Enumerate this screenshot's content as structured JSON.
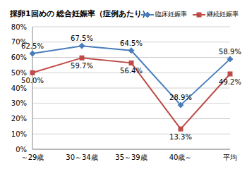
{
  "chart_data": {
    "type": "line",
    "title": "採卵1回めの 総合妊娠率（症例あたり）",
    "categories": [
      "～29歳",
      "30～34歳",
      "35～39歳",
      "40歳～",
      "平均"
    ],
    "series": [
      {
        "name": "臨床妊娠率",
        "color": "#4a7ebb",
        "marker": "diamond",
        "values": [
          62.5,
          67.5,
          64.5,
          28.9,
          58.9
        ],
        "value_labels": [
          "62.5%",
          "67.5%",
          "64.5%",
          "28.9%",
          "58.9%"
        ]
      },
      {
        "name": "継続妊娠率",
        "color": "#be4b48",
        "marker": "square",
        "values": [
          50.0,
          59.7,
          56.4,
          13.3,
          49.2
        ],
        "value_labels": [
          "50.0%",
          "59.7%",
          "56.4%",
          "13.3%",
          "49.2%"
        ]
      }
    ],
    "ylim": [
      0,
      80
    ],
    "yticks": [
      {
        "value": 0,
        "label": "0%"
      },
      {
        "value": 10,
        "label": "10%"
      },
      {
        "value": 20,
        "label": "20%"
      },
      {
        "value": 30,
        "label": "30%"
      },
      {
        "value": 40,
        "label": "40%"
      },
      {
        "value": 50,
        "label": "50%"
      },
      {
        "value": 60,
        "label": "60%"
      },
      {
        "value": 70,
        "label": "70%"
      },
      {
        "value": 80,
        "label": "80%"
      }
    ],
    "grid": true,
    "legend": "top-right",
    "data_labels": true
  }
}
